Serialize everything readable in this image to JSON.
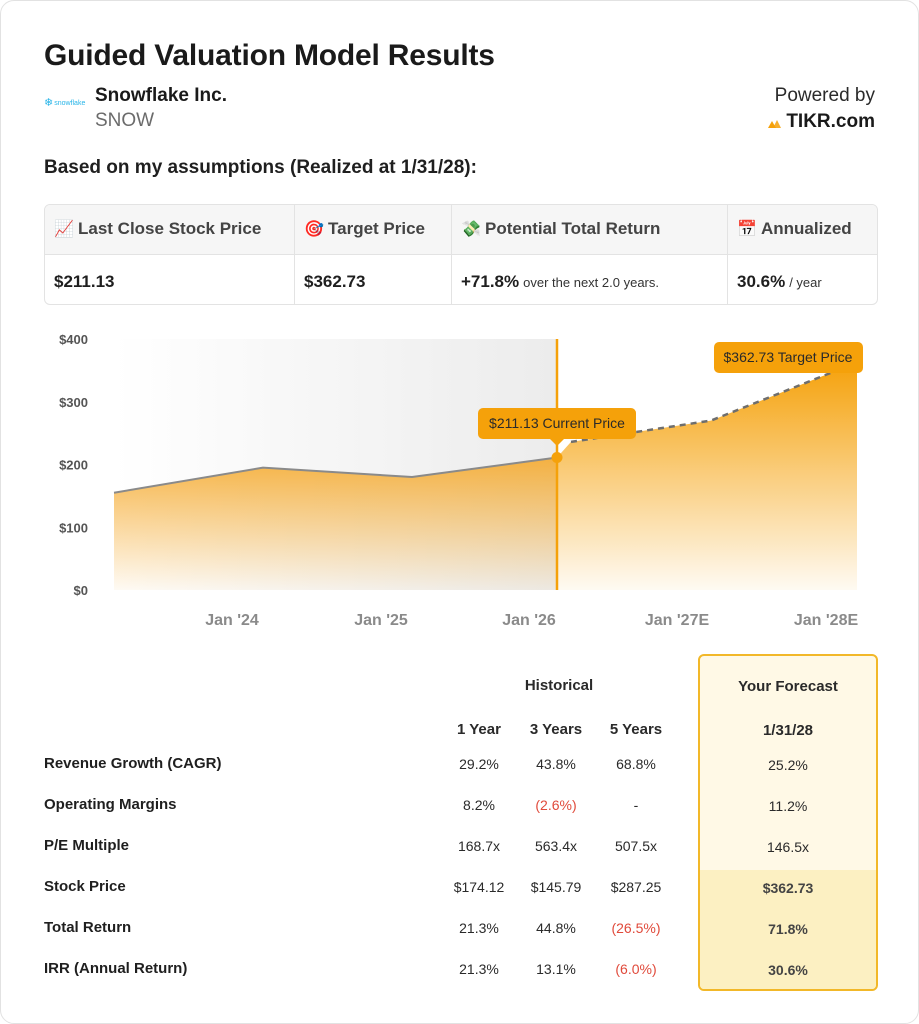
{
  "title": "Guided Valuation Model Results",
  "company": {
    "name": "Snowflake Inc.",
    "ticker": "SNOW",
    "logo_text": "snowflake",
    "logo_icon": "snowflake-logo-icon"
  },
  "powered_by": {
    "label": "Powered by",
    "brand": "TIKR.com",
    "brand_icon": "tikr-logo-icon"
  },
  "assumptions_heading": "Based on my assumptions (Realized at 1/31/28):",
  "summary": [
    {
      "icon": "chart-up-icon",
      "label": "Last Close Stock Price",
      "value": "$211.13",
      "sub": ""
    },
    {
      "icon": "target-icon",
      "label": "Target Price",
      "value": "$362.73",
      "sub": ""
    },
    {
      "icon": "money-icon",
      "label": "Potential Total Return",
      "value": "+71.8%",
      "sub": "over the next 2.0 years."
    },
    {
      "icon": "calendar-icon",
      "label": "Annualized",
      "value": "30.6%",
      "sub": "/ year"
    }
  ],
  "chart_data": {
    "type": "area",
    "y_ticks": [
      "$400",
      "$300",
      "$200",
      "$100",
      "$0"
    ],
    "ylim": [
      0,
      400
    ],
    "x_ticks": [
      "Jan '24",
      "Jan '25",
      "Jan '26",
      "Jan '27E",
      "Jan '28E"
    ],
    "historical": [
      {
        "x": "Jan '23",
        "y": 155
      },
      {
        "x": "Jan '24",
        "y": 195
      },
      {
        "x": "Jan '25",
        "y": 180
      },
      {
        "x": "Jan '26",
        "y": 211.13
      }
    ],
    "forecast": [
      {
        "x": "Jan '26",
        "y": 211.13
      },
      {
        "x": "Jan '26+",
        "y": 236
      },
      {
        "x": "Jan '27E",
        "y": 270
      },
      {
        "x": "Jan '28E",
        "y": 362.73
      }
    ],
    "current_label": "$211.13 Current Price",
    "target_label": "$362.73 Target Price",
    "colors": {
      "area": "#f5a623",
      "line": "#8a8a8a",
      "accent": "#f5a10a"
    }
  },
  "table": {
    "historical_label": "Historical",
    "forecast_label": "Your Forecast",
    "columns": [
      "1 Year",
      "3 Years",
      "5 Years"
    ],
    "forecast_column": "1/31/28",
    "rows": [
      {
        "label": "Revenue Growth (CAGR)",
        "values": [
          "29.2%",
          "43.8%",
          "68.8%"
        ],
        "forecast": "25.2%"
      },
      {
        "label": "Operating Margins",
        "values": [
          "8.2%",
          "(2.6%)",
          "-"
        ],
        "forecast": "11.2%"
      },
      {
        "label": "P/E Multiple",
        "values": [
          "168.7x",
          "563.4x",
          "507.5x"
        ],
        "forecast": "146.5x"
      },
      {
        "label": "Stock Price",
        "values": [
          "$174.12",
          "$145.79",
          "$287.25"
        ],
        "forecast": "$362.73"
      },
      {
        "label": "Total Return",
        "values": [
          "21.3%",
          "44.8%",
          "(26.5%)"
        ],
        "forecast": "71.8%"
      },
      {
        "label": "IRR (Annual Return)",
        "values": [
          "21.3%",
          "13.1%",
          "(6.0%)"
        ],
        "forecast": "30.6%"
      }
    ]
  }
}
